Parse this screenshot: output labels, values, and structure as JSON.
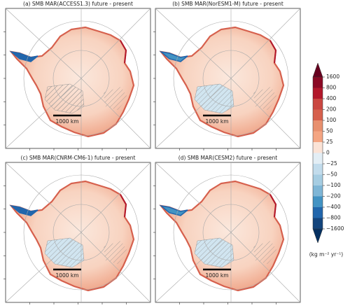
{
  "panels": [
    {
      "title": "(a) SMB MAR(ACCESS1.3) future - present",
      "scale_label": "1000 km"
    },
    {
      "title": "(b) SMB MAR(NorESM1-M) future - present",
      "scale_label": "1000 km"
    },
    {
      "title": "(c) SMB MAR(CNRM-CM6-1) future - present",
      "scale_label": "1000 km"
    },
    {
      "title": "(d) SMB MAR(CESM2) future - present",
      "scale_label": "1000 km"
    }
  ],
  "colorbar": {
    "ticks": [
      1600,
      800,
      400,
      200,
      100,
      50,
      25,
      0,
      {
        "value": -25,
        "label": "−25"
      },
      {
        "value": -50,
        "label": "−50"
      },
      {
        "value": -100,
        "label": "−100"
      },
      {
        "value": -200,
        "label": "−200"
      },
      {
        "value": -400,
        "label": "−400"
      },
      {
        "value": -800,
        "label": "−800"
      },
      {
        "value": -1600,
        "label": "−1600"
      }
    ],
    "colors": [
      "#8b0a25",
      "#b2182b",
      "#ca4741",
      "#d6604d",
      "#e8906e",
      "#f4a582",
      "#fbe3d6",
      "#e3eef5",
      "#c2dcec",
      "#a6cde2",
      "#7fb6d6",
      "#4393c3",
      "#2166ac",
      "#14457d"
    ],
    "over_color": "#67001f",
    "under_color": "#053061",
    "unit": "(kg m⁻² yr⁻¹)"
  }
}
